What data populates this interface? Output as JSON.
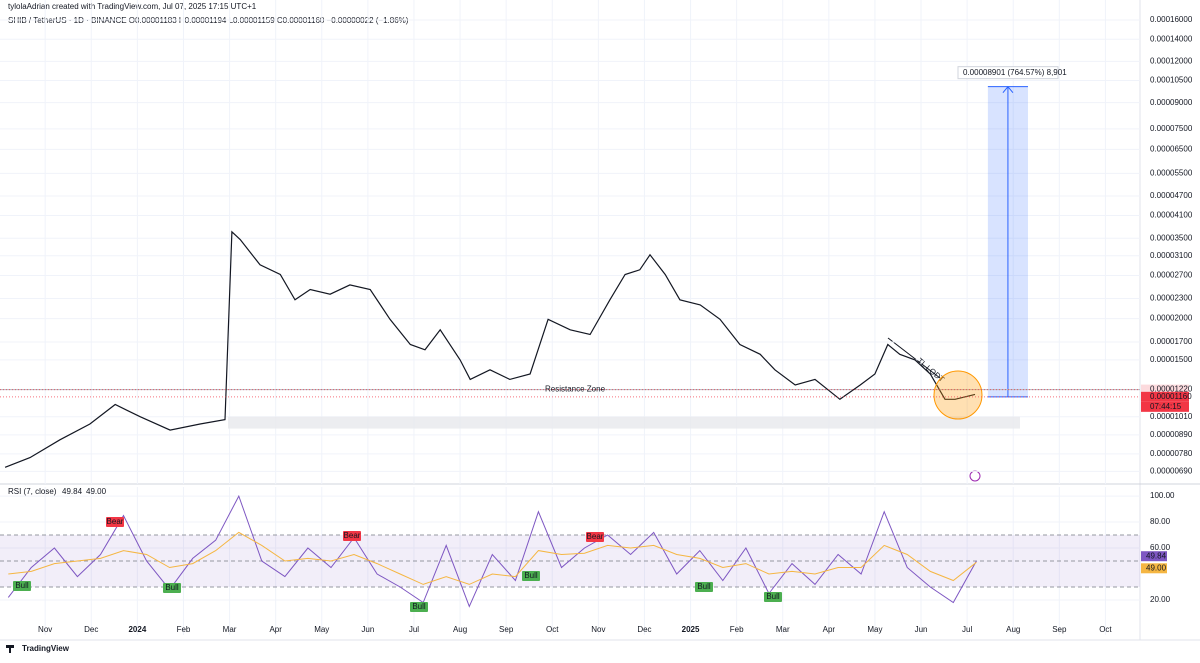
{
  "header": {
    "author_line": "tylolaAdrian created with TradingView.com, Jul 07, 2025 17:15 UTC+1",
    "symbol_line": "SHIB / TetherUS · 1D · BINANCE  O0.00001183  H0.00001194  L0.00001159  C0.00001160  −0.00000022 (−1.86%)"
  },
  "footer": {
    "brand": "TradingView"
  },
  "chart_data": [
    {
      "type": "line",
      "log_scale": true,
      "grid": true,
      "color": "#131722",
      "x": [
        0.13,
        0.67,
        1.32,
        1.97,
        2.52,
        3.06,
        3.71,
        4.36,
        4.9,
        5.05,
        5.23,
        5.66,
        6.1,
        6.42,
        6.75,
        7.18,
        7.61,
        8.05,
        8.48,
        8.92,
        9.24,
        9.57,
        10.0,
        10.22,
        10.65,
        11.08,
        11.52,
        11.91,
        12.39,
        12.82,
        13.25,
        13.58,
        13.9,
        14.12,
        14.45,
        14.77,
        15.21,
        15.64,
        16.07,
        16.51,
        16.83,
        17.27,
        17.7,
        18.24,
        18.68,
        19.0,
        19.28,
        19.54,
        19.87,
        20.2,
        20.52,
        20.74,
        21.17
      ],
      "values": [
        7.1e-06,
        7.6e-06,
        8.6e-06,
        9.6e-06,
        1.1e-05,
        1.01e-05,
        9.2e-06,
        9.6e-06,
        9.9e-06,
        3.66e-05,
        3.47e-05,
        2.91e-05,
        2.72e-05,
        2.28e-05,
        2.45e-05,
        2.37e-05,
        2.53e-05,
        2.45e-05,
        1.99e-05,
        1.67e-05,
        1.61e-05,
        1.85e-05,
        1.5e-05,
        1.31e-05,
        1.4e-05,
        1.31e-05,
        1.36e-05,
        1.99e-05,
        1.85e-05,
        1.79e-05,
        2.28e-05,
        2.72e-05,
        2.81e-05,
        3.12e-05,
        2.72e-05,
        2.28e-05,
        2.2e-05,
        1.99e-05,
        1.67e-05,
        1.56e-05,
        1.4e-05,
        1.26e-05,
        1.31e-05,
        1.14e-05,
        1.26e-05,
        1.36e-05,
        1.67e-05,
        1.56e-05,
        1.5e-05,
        1.36e-05,
        1.14e-05,
        1.14e-05,
        1.18e-05
      ],
      "xlim": [
        0.02,
        24.75
      ],
      "ylim": [
        6.5e-06,
        0.000174
      ],
      "xticks": [
        {
          "value": 1,
          "label": "Nov"
        },
        {
          "value": 2,
          "label": "Dec"
        },
        {
          "value": 3,
          "label": "2024"
        },
        {
          "value": 4,
          "label": "Feb"
        },
        {
          "value": 5,
          "label": "Mar"
        },
        {
          "value": 6,
          "label": "Apr"
        },
        {
          "value": 7,
          "label": "May"
        },
        {
          "value": 8,
          "label": "Jun"
        },
        {
          "value": 9,
          "label": "Jul"
        },
        {
          "value": 10,
          "label": "Aug"
        },
        {
          "value": 11,
          "label": "Sep"
        },
        {
          "value": 12,
          "label": "Oct"
        },
        {
          "value": 13,
          "label": "Nov"
        },
        {
          "value": 14,
          "label": "Dec"
        },
        {
          "value": 15,
          "label": "2025"
        },
        {
          "value": 16,
          "label": "Feb"
        },
        {
          "value": 17,
          "label": "Mar"
        },
        {
          "value": 18,
          "label": "Apr"
        },
        {
          "value": 19,
          "label": "May"
        },
        {
          "value": 20,
          "label": "Jun"
        },
        {
          "value": 21,
          "label": "Jul"
        },
        {
          "value": 22,
          "label": "Aug"
        },
        {
          "value": 23,
          "label": "Sep"
        },
        {
          "value": 24,
          "label": "Oct"
        }
      ],
      "yticks": [
        {
          "value": 0.00016,
          "label": "0.00016000"
        },
        {
          "value": 0.00014,
          "label": "0.00014000"
        },
        {
          "value": 0.00012,
          "label": "0.00012000"
        },
        {
          "value": 0.000105,
          "label": "0.00010500"
        },
        {
          "value": 9e-05,
          "label": "0.00009000"
        },
        {
          "value": 7.5e-05,
          "label": "0.00007500"
        },
        {
          "value": 6.5e-05,
          "label": "0.00006500"
        },
        {
          "value": 5.5e-05,
          "label": "0.00005500"
        },
        {
          "value": 4.7e-05,
          "label": "0.00004700"
        },
        {
          "value": 4.1e-05,
          "label": "0.00004100"
        },
        {
          "value": 3.5e-05,
          "label": "0.00003500"
        },
        {
          "value": 3.1e-05,
          "label": "0.00003100"
        },
        {
          "value": 2.7e-05,
          "label": "0.00002700"
        },
        {
          "value": 2.3e-05,
          "label": "0.00002300"
        },
        {
          "value": 2e-05,
          "label": "0.00002000"
        },
        {
          "value": 1.7e-05,
          "label": "0.00001700"
        },
        {
          "value": 1.5e-05,
          "label": "0.00001500"
        },
        {
          "value": 1.01e-05,
          "label": "0.00001010"
        },
        {
          "value": 8.9e-06,
          "label": "0.00000890"
        },
        {
          "value": 7.8e-06,
          "label": "0.00000780"
        },
        {
          "value": 6.9e-06,
          "label": "0.00000690"
        }
      ],
      "price_levels": [
        {
          "value": 1.22e-05,
          "label": "0.00001220"
        },
        {
          "value": 1.16e-05,
          "label": "0.00001160"
        }
      ],
      "countdown": "07:44:15",
      "resistance": {
        "label": "Resistance Zone",
        "value": 1.22e-05
      },
      "support_zone": [
        1.01e-05,
        9.3e-06
      ],
      "trendline_label": "TL LQDT",
      "projection": {
        "label": "0.00008901 (764.57%) 8,901",
        "from": 1.16e-05,
        "to": 0.0001006,
        "x": [
          21.45,
          22.32
        ]
      }
    },
    {
      "type": "line",
      "title": "RSI (7, close)",
      "grid": true,
      "x": [
        0.2,
        0.7,
        1.2,
        1.7,
        2.2,
        2.7,
        3.2,
        3.7,
        4.2,
        4.7,
        5.2,
        5.7,
        6.2,
        6.7,
        7.2,
        7.7,
        8.2,
        8.7,
        9.2,
        9.7,
        10.2,
        10.7,
        11.2,
        11.7,
        12.2,
        12.7,
        13.2,
        13.7,
        14.2,
        14.7,
        15.2,
        15.7,
        16.2,
        16.7,
        17.2,
        17.7,
        18.2,
        18.7,
        19.2,
        19.7,
        20.2,
        20.7,
        21.2
      ],
      "series": [
        {
          "color": "#7e57c2",
          "values": [
            22,
            45,
            60,
            38,
            55,
            85,
            50,
            28,
            52,
            66,
            100,
            50,
            38,
            60,
            45,
            68,
            40,
            30,
            18,
            62,
            15,
            55,
            35,
            88,
            45,
            60,
            70,
            55,
            72,
            40,
            58,
            35,
            60,
            25,
            48,
            32,
            55,
            40,
            88,
            45,
            30,
            18,
            50
          ]
        },
        {
          "color": "#f5b642",
          "values": [
            40,
            42,
            48,
            50,
            52,
            58,
            55,
            45,
            48,
            58,
            72,
            62,
            50,
            52,
            50,
            55,
            48,
            40,
            32,
            38,
            32,
            40,
            38,
            58,
            55,
            56,
            62,
            60,
            62,
            55,
            52,
            45,
            48,
            40,
            42,
            40,
            45,
            45,
            62,
            55,
            42,
            35,
            49
          ]
        }
      ],
      "legend_values": [
        {
          "value": 49.84,
          "label": "49.84"
        },
        {
          "value": 49,
          "label": "49.00"
        }
      ],
      "xlim": [
        0.02,
        24.75
      ],
      "ylim": [
        -7,
        107
      ],
      "yticks": [
        {
          "value": 100,
          "label": "100.00"
        },
        {
          "value": 80,
          "label": "80.00"
        },
        {
          "value": 60,
          "label": "60.00"
        },
        {
          "value": 20,
          "label": "20.00"
        }
      ],
      "band": [
        30,
        70
      ],
      "midline": 50,
      "signals": [
        "Bear",
        "Bear",
        "Bear",
        "Bull",
        "Bull",
        "Bull",
        "Bull",
        "Bull",
        "Bull"
      ]
    }
  ]
}
